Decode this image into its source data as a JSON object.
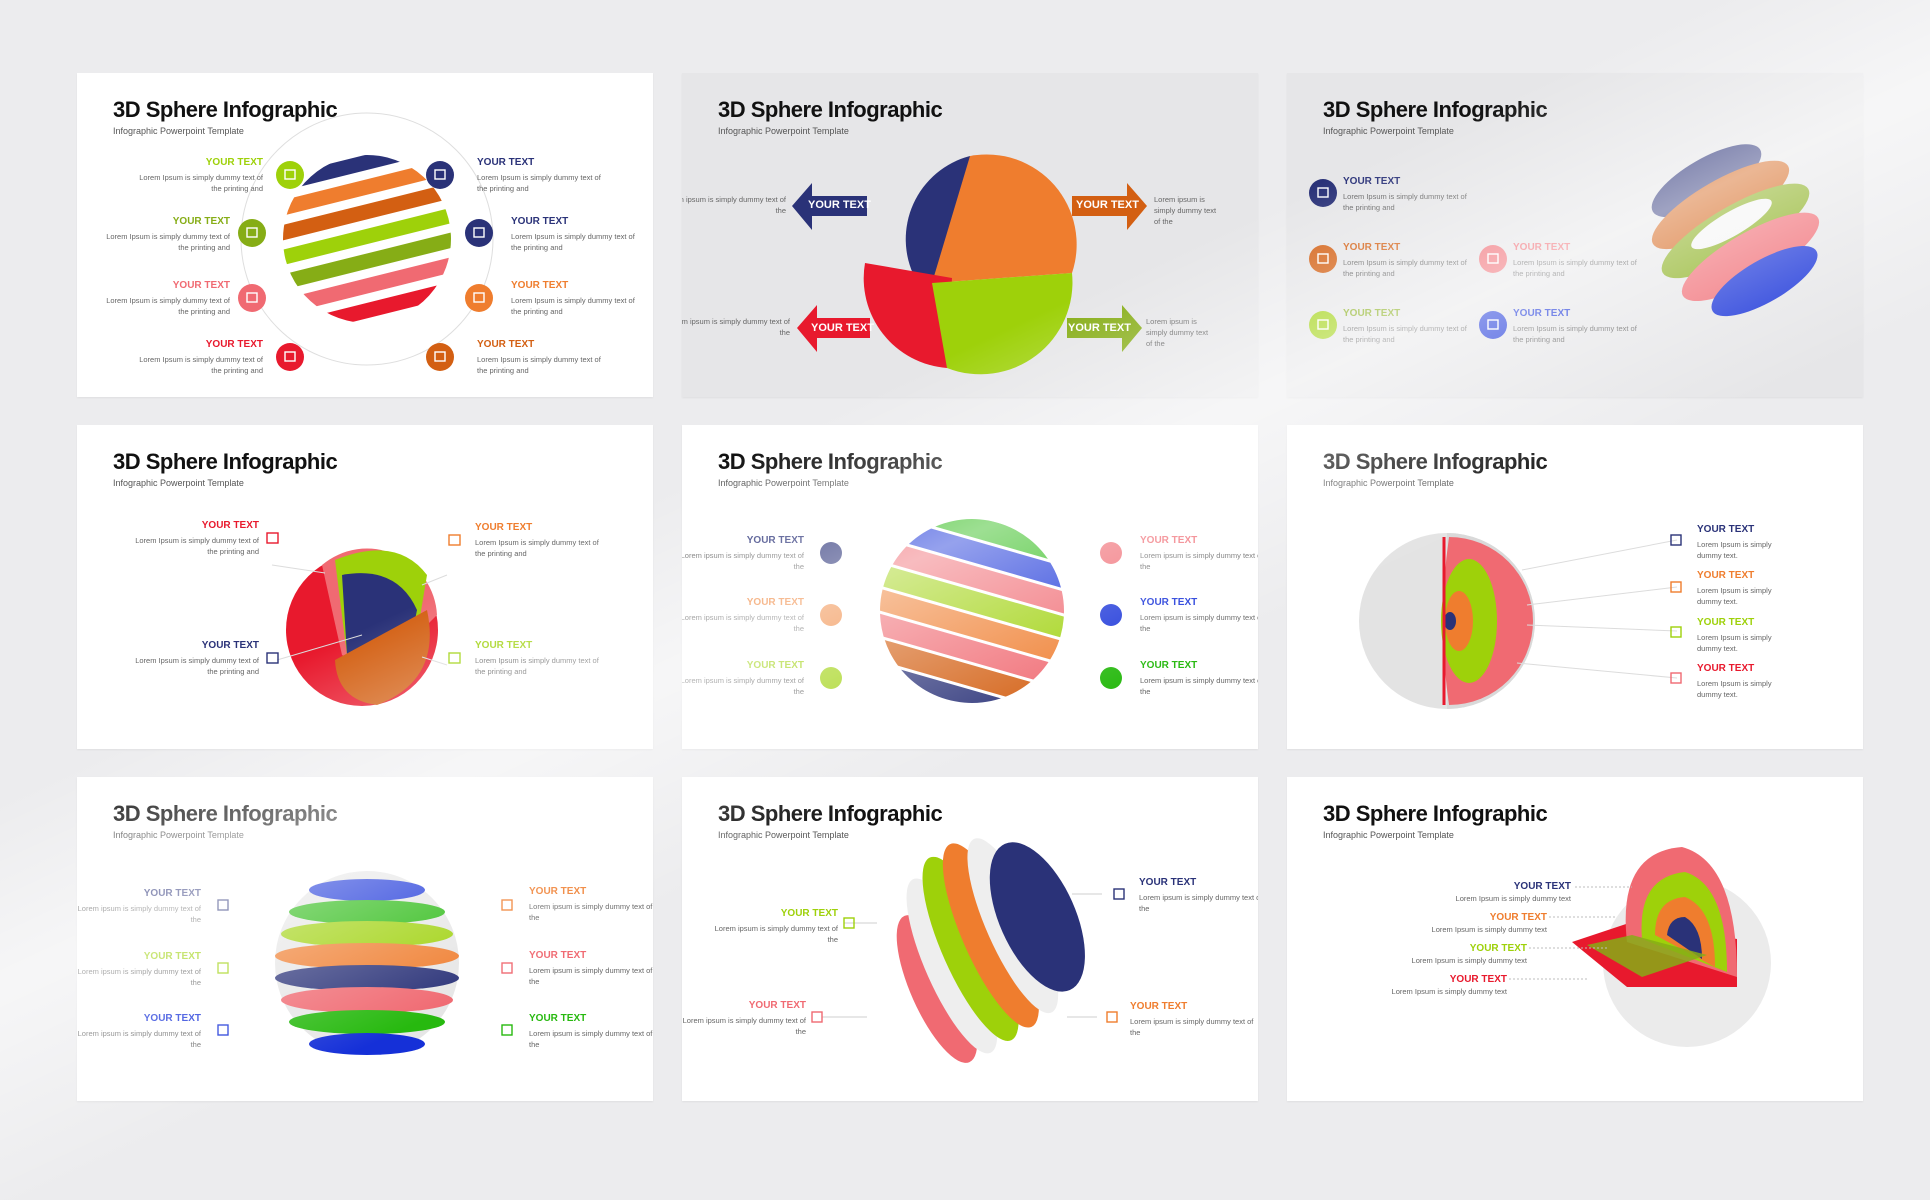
{
  "slide_title": "3D Sphere Infographic",
  "slide_subtitle": "Infographic Powerpoint Template",
  "heading": "YOUR TEXT",
  "body_long": "Lorem Ipsum is simply dummy text of the printing and",
  "body_short": "Lorem ipsum is simply dummy text of the",
  "body_dummy": "Lorem Ipsum is simply dummy text.",
  "body_one_line": "Lorem Ipsum is simply dummy text",
  "colors": {
    "navy": "#2a3278",
    "orange": "#ef7d2e",
    "dark_orange": "#d35f12",
    "lime": "#9ed10a",
    "olive": "#86ad16",
    "pink": "#f06a72",
    "red": "#e8192d",
    "blue": "#1530d8",
    "green": "#27b90f",
    "grey": "#e3e3e3"
  },
  "slides": [
    {
      "id": 1,
      "icons": [
        "image-icon",
        "document-icon",
        "chart-icon",
        "office-icon",
        "monitor-icon",
        "hand-icon",
        "building-icon",
        "bank-icon"
      ]
    },
    {
      "id": 2,
      "icons": []
    },
    {
      "id": 3,
      "icons": [
        "document-icon",
        "office-icon",
        "monitor-icon",
        "image-icon",
        "hand-icon",
        "hand-icon"
      ]
    },
    {
      "id": 4,
      "icons": [
        "building-icon",
        "hand-icon",
        "office-icon",
        "hand-icon"
      ]
    },
    {
      "id": 5,
      "icons": [
        "monitor-icon",
        "document-icon",
        "chart-icon",
        "hand-icon",
        "building-icon",
        "bank-icon"
      ]
    },
    {
      "id": 6,
      "icons": [
        "document-icon",
        "chart-icon",
        "image-icon",
        "chart-icon"
      ]
    },
    {
      "id": 7,
      "icons": [
        "hand-icon",
        "document-icon",
        "image-icon",
        "document-icon",
        "monitor-icon",
        "chart-icon"
      ]
    },
    {
      "id": 8,
      "icons": [
        "image-icon",
        "document-icon",
        "building-icon",
        "chart-icon"
      ]
    },
    {
      "id": 9,
      "icons": []
    }
  ]
}
